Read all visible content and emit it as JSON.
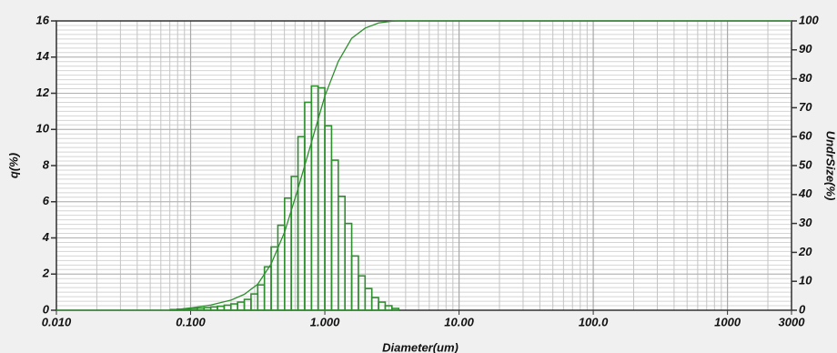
{
  "chart_data": {
    "type": "histogram",
    "xlabel": "Diameter(um)",
    "ylabel": "q(%)",
    "y2label": "UndrSize(%)",
    "xscale": "log",
    "grid": true,
    "color": "#2f8f2f",
    "xlim": [
      0.01,
      3000
    ],
    "xticks": [
      {
        "value": 0.01,
        "label": "0.010"
      },
      {
        "value": 0.1,
        "label": "0.100"
      },
      {
        "value": 1,
        "label": "1.000"
      },
      {
        "value": 10,
        "label": "10.00"
      },
      {
        "value": 100,
        "label": "100.0"
      },
      1000,
      3000
    ],
    "ylim": [
      0,
      16
    ],
    "yticks": [
      0,
      2,
      4,
      6,
      8,
      10,
      12,
      14,
      16
    ],
    "y2lim": [
      0,
      100
    ],
    "y2ticks": [
      0,
      10,
      20,
      30,
      40,
      50,
      60,
      70,
      80,
      90,
      100
    ],
    "bins": [
      0.0708,
      0.0794,
      0.0891,
      0.1,
      0.1122,
      0.1259,
      0.1413,
      0.1585,
      0.1778,
      0.1995,
      0.2239,
      0.2512,
      0.2818,
      0.3162,
      0.3548,
      0.3981,
      0.4467,
      0.5012,
      0.5623,
      0.631,
      0.7079,
      0.7943,
      0.8913,
      1,
      1.122,
      1.259,
      1.413,
      1.585,
      1.778,
      1.995,
      2.239,
      2.512,
      2.818,
      3.162,
      3.548
    ],
    "values": [
      0.04,
      0.06,
      0.08,
      0.1,
      0.12,
      0.15,
      0.18,
      0.22,
      0.28,
      0.35,
      0.45,
      0.6,
      0.9,
      1.4,
      2.4,
      3.5,
      4.7,
      6.2,
      7.4,
      9.6,
      11.5,
      12.4,
      12.3,
      10.2,
      8.3,
      6.3,
      4.8,
      3.0,
      1.9,
      1.2,
      0.7,
      0.45,
      0.25,
      0.1
    ],
    "series": [
      {
        "axis": "y2",
        "color": "#2f8f2f",
        "x": [
          0.01,
          0.0708,
          0.1,
          0.1413,
          0.2,
          0.2512,
          0.3162,
          0.3981,
          0.5012,
          0.631,
          0.7943,
          1,
          1.259,
          1.585,
          1.995,
          2.512,
          3.162,
          3.548,
          3000
        ],
        "values": [
          0,
          0,
          0.8,
          1.8,
          3.5,
          5.5,
          9,
          16,
          27,
          42,
          58,
          74,
          86,
          94,
          97.5,
          99.3,
          99.9,
          100,
          100
        ]
      }
    ]
  }
}
